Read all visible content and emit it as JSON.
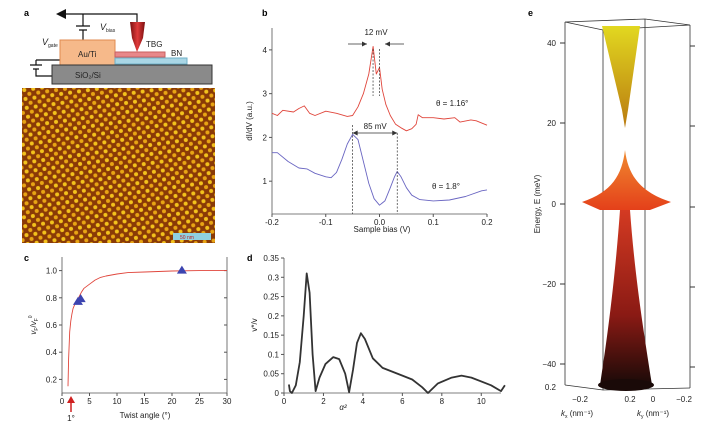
{
  "panel_labels": {
    "a": "a",
    "b": "b",
    "c": "c",
    "d": "d",
    "e": "e"
  },
  "panel_a": {
    "v_gate": "V",
    "v_gate_sub": "gate",
    "v_bias": "V",
    "v_bias_sub": "bias",
    "electrode": "Au/Ti",
    "tbg": "TBG",
    "bn": "BN",
    "substrate": "SiO₂/Si",
    "scale_bar": "50 nm",
    "colors": {
      "electrode": "#f6b98a",
      "tbg": "#e8888a",
      "bn": "#a9d6e5",
      "substrate": "#8a8a8a",
      "tip": "#c0262b",
      "stm_dark": "#8a3a06",
      "stm_bright": "#f3c21c"
    }
  },
  "chart_data": [
    {
      "panel": "b",
      "type": "line",
      "xlabel": "Sample bias (V)",
      "ylabel": "dI/dV (a.u.)",
      "xlim": [
        -0.2,
        0.2
      ],
      "ylim": [
        0.25,
        4.5
      ],
      "xticks": [
        "-0.2",
        "-0.1",
        "0.0",
        "0.1",
        "0.2"
      ],
      "yticks": [
        "1",
        "2",
        "3",
        "4"
      ],
      "annotations": [
        "12 mV",
        "85 mV"
      ],
      "series": [
        {
          "name": "θ = 1.16°",
          "color": "#e0463c",
          "x": [
            -0.2,
            -0.19,
            -0.18,
            -0.16,
            -0.15,
            -0.14,
            -0.13,
            -0.12,
            -0.1,
            -0.08,
            -0.06,
            -0.05,
            -0.04,
            -0.03,
            -0.02,
            -0.012,
            -0.006,
            0,
            0.005,
            0.012,
            0.02,
            0.03,
            0.04,
            0.05,
            0.06,
            0.068,
            0.072,
            0.08,
            0.1,
            0.12,
            0.14,
            0.15,
            0.17,
            0.18,
            0.2
          ],
          "y": [
            2.55,
            2.5,
            2.62,
            2.58,
            2.66,
            2.72,
            2.55,
            2.5,
            2.6,
            2.55,
            2.48,
            2.5,
            2.7,
            3.0,
            3.45,
            4.08,
            3.45,
            3.6,
            3.1,
            2.75,
            2.5,
            2.3,
            2.22,
            2.15,
            2.2,
            2.3,
            2.52,
            2.45,
            2.45,
            2.42,
            2.45,
            2.35,
            2.4,
            2.38,
            2.28
          ]
        },
        {
          "name": "θ = 1.8°",
          "color": "#6a66c2",
          "x": [
            -0.2,
            -0.19,
            -0.17,
            -0.15,
            -0.135,
            -0.12,
            -0.1,
            -0.09,
            -0.08,
            -0.07,
            -0.06,
            -0.05,
            -0.04,
            -0.03,
            -0.02,
            -0.01,
            0,
            0.01,
            0.02,
            0.028,
            0.033,
            0.04,
            0.05,
            0.06,
            0.075,
            0.1,
            0.13,
            0.16,
            0.19,
            0.2
          ],
          "y": [
            1.65,
            1.65,
            1.45,
            1.3,
            1.28,
            1.18,
            1.1,
            1.08,
            1.2,
            1.5,
            1.85,
            2.07,
            1.95,
            1.45,
            0.95,
            0.6,
            0.45,
            0.55,
            0.85,
            1.1,
            1.22,
            1.1,
            0.85,
            0.68,
            0.58,
            0.55,
            0.57,
            0.65,
            0.78,
            0.8
          ]
        }
      ]
    },
    {
      "panel": "c",
      "type": "line",
      "xlabel": "Twist angle (°)",
      "ylabel": "vF/vF0",
      "ylabel_parts": {
        "v": "v",
        "f": "F",
        "sep": "/",
        "v2": "v",
        "f2": "F",
        "sup": "0"
      },
      "xlim": [
        0,
        30
      ],
      "ylim": [
        0.1,
        1.1
      ],
      "xticks": [
        "0",
        "5",
        "10",
        "15",
        "20",
        "25",
        "30"
      ],
      "yticks": [
        "0.2",
        "0.4",
        "0.6",
        "0.8",
        "1.0"
      ],
      "arrow_label": "1°",
      "series": [
        {
          "type": "line",
          "color": "#e0463c",
          "x": [
            1.1,
            1.2,
            1.4,
            1.6,
            1.8,
            2,
            2.5,
            3,
            3.5,
            4,
            5,
            6,
            7,
            8,
            10,
            12,
            15,
            20,
            25,
            30
          ],
          "y": [
            0.15,
            0.35,
            0.55,
            0.63,
            0.68,
            0.72,
            0.77,
            0.8,
            0.84,
            0.87,
            0.9,
            0.93,
            0.95,
            0.96,
            0.975,
            0.985,
            0.99,
            0.997,
            1.0,
            1.0
          ]
        },
        {
          "type": "scatter",
          "marker": "triangle",
          "color": "#3c44b0",
          "x": [
            2.9,
            3.4,
            21.8
          ],
          "y": [
            0.77,
            0.79,
            1.0
          ]
        }
      ]
    },
    {
      "panel": "d",
      "type": "line",
      "xlabel": "α²",
      "ylabel": "v*/v",
      "xlim": [
        0,
        11
      ],
      "ylim": [
        0,
        0.35
      ],
      "xticks": [
        "0",
        "2",
        "4",
        "6",
        "8",
        "10"
      ],
      "yticks": [
        "0",
        "0.05",
        "0.1",
        "0.15",
        "0.2",
        "0.25",
        "0.3",
        "0.35"
      ],
      "series": [
        {
          "color": "#333333",
          "x": [
            0.25,
            0.3,
            0.4,
            0.6,
            0.8,
            1.0,
            1.15,
            1.3,
            1.45,
            1.6,
            1.8,
            2.1,
            2.5,
            2.8,
            3.1,
            3.3,
            3.5,
            3.7,
            3.9,
            4.1,
            4.5,
            5,
            6,
            6.5,
            7,
            7.3,
            7.8,
            8.5,
            9,
            9.5,
            10.5,
            11,
            11.2
          ],
          "y": [
            0.022,
            0.005,
            0,
            0.02,
            0.08,
            0.2,
            0.31,
            0.26,
            0.1,
            0.005,
            0.04,
            0.075,
            0.093,
            0.088,
            0.05,
            0.002,
            0.06,
            0.13,
            0.155,
            0.14,
            0.09,
            0.065,
            0.045,
            0.035,
            0.015,
            0,
            0.025,
            0.04,
            0.045,
            0.04,
            0.02,
            0.005,
            0.02
          ]
        }
      ]
    },
    {
      "panel": "e",
      "type": "surface",
      "ylabel": "Energy, E (meV)",
      "zticks": [
        "40",
        "20",
        "0",
        "−20",
        "−40"
      ],
      "kx_label": "k",
      "kx_sub": "x",
      "kx_unit": "(nm⁻¹)",
      "ky_label": "k",
      "ky_sub": "y",
      "ky_unit": "(nm⁻¹)",
      "kx_ticks": [
        "0.2",
        "−0.2"
      ],
      "ky_ticks": [
        "0.2",
        "0",
        "−0.2"
      ],
      "colors": {
        "upper_band": "#d8cc20",
        "middle_band": "#e4501c",
        "lower_band": "#b8281c",
        "base": "#1a0a08"
      }
    }
  ]
}
